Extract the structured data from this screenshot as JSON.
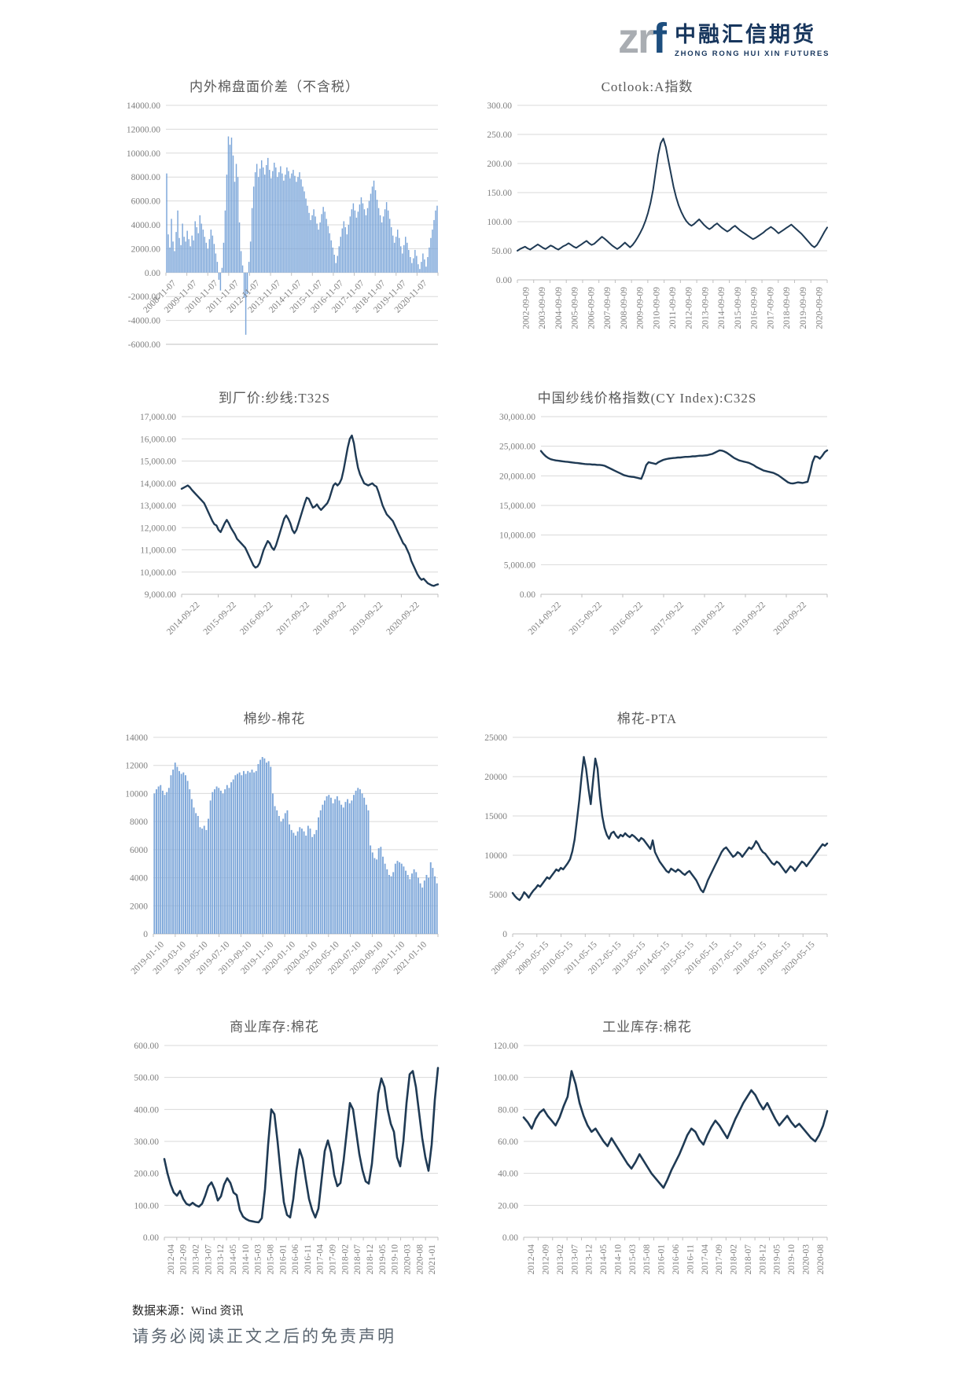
{
  "logo": {
    "wordmark_gray": "zr",
    "wordmark_blue": "f",
    "company_cn": "中融汇信期货",
    "company_en": "ZHONG RONG HUI XIN FUTURES"
  },
  "footer": {
    "source": "数据来源：Wind 资讯",
    "disclaimer": "请务必阅读正文之后的免责声明"
  },
  "colors": {
    "bar": "#7ca6d9",
    "line": "#1f3a54",
    "grid": "#d9d9d9",
    "axis": "#bfbfbf",
    "tick_text": "#7f7f7f",
    "title_text": "#595959"
  },
  "chart_data": [
    {
      "id": "c1",
      "type": "bar",
      "title": "内外棉盘面价差（不含税）",
      "ylim": [
        -6000,
        14000
      ],
      "ystep": 2000,
      "yfmt": {
        "dec": 2,
        "comma": false
      },
      "xrot": "diag",
      "xlabels_at_zero": true,
      "x_labels": [
        "2008-11-07",
        "2009-11-07",
        "2010-11-07",
        "2011-11-07",
        "2012-11-07",
        "2013-11-07",
        "2014-11-07",
        "2015-11-07",
        "2016-11-07",
        "2017-11-07",
        "2018-11-07",
        "2019-11-07",
        "2020-11-07"
      ],
      "values": [
        8300,
        3200,
        2100,
        4500,
        2600,
        1800,
        3400,
        5200,
        2900,
        2300,
        4100,
        3000,
        2600,
        3500,
        2800,
        2200,
        3100,
        2700,
        4300,
        3800,
        3300,
        4800,
        4100,
        3600,
        3000,
        2500,
        2000,
        2800,
        3600,
        3100,
        2400,
        1600,
        900,
        -600,
        -1500,
        400,
        2500,
        5200,
        8200,
        11400,
        10700,
        11300,
        9800,
        7600,
        9100,
        8000,
        4200,
        1800,
        600,
        -2100,
        -5200,
        -1800,
        900,
        2600,
        5400,
        7200,
        8400,
        9100,
        8000,
        8700,
        9400,
        8800,
        8200,
        9000,
        9600,
        8600,
        7900,
        8500,
        9200,
        8800,
        8000,
        8400,
        8900,
        8300,
        7700,
        8200,
        8800,
        8500,
        7900,
        8300,
        8600,
        8100,
        7600,
        8000,
        8400,
        7800,
        7200,
        6800,
        6200,
        5600,
        5000,
        4400,
        4800,
        5300,
        4700,
        4100,
        3600,
        4200,
        4900,
        5500,
        5100,
        4500,
        3900,
        3300,
        2700,
        2100,
        1500,
        800,
        1400,
        2200,
        3000,
        3700,
        4300,
        3800,
        3200,
        4000,
        4700,
        5300,
        5800,
        5200,
        4600,
        5100,
        5700,
        6300,
        5800,
        5300,
        4800,
        5400,
        6000,
        6600,
        7200,
        7700,
        6900,
        6100,
        5400,
        4800,
        4200,
        4700,
        5300,
        5900,
        5200,
        4500,
        3800,
        3100,
        2500,
        3000,
        3600,
        2900,
        2200,
        1600,
        2300,
        3000,
        2500,
        1900,
        1300,
        800,
        1200,
        1900,
        1400,
        700,
        300,
        900,
        1600,
        1100,
        500,
        1300,
        2100,
        2900,
        3600,
        4400,
        5200,
        5600
      ]
    },
    {
      "id": "c2",
      "type": "line",
      "title": "Cotlook:A指数",
      "ylim": [
        0,
        300
      ],
      "ystep": 50,
      "yfmt": {
        "dec": 2,
        "comma": false
      },
      "xrot": "vert",
      "x_labels": [
        "2002-09-09",
        "2003-09-09",
        "2004-09-09",
        "2005-09-09",
        "2006-09-09",
        "2007-09-09",
        "2008-09-09",
        "2009-09-09",
        "2010-09-09",
        "2011-09-09",
        "2012-09-09",
        "2013-09-09",
        "2014-09-09",
        "2015-09-09",
        "2016-09-09",
        "2017-09-09",
        "2018-09-09",
        "2019-09-09",
        "2020-09-09"
      ],
      "values": [
        50,
        53,
        55,
        57,
        54,
        52,
        55,
        58,
        61,
        58,
        55,
        53,
        56,
        59,
        57,
        54,
        52,
        55,
        58,
        60,
        63,
        60,
        57,
        55,
        58,
        61,
        64,
        67,
        63,
        60,
        62,
        66,
        70,
        74,
        71,
        67,
        63,
        59,
        56,
        53,
        56,
        60,
        64,
        60,
        56,
        60,
        66,
        73,
        81,
        90,
        101,
        115,
        132,
        155,
        185,
        215,
        235,
        243,
        228,
        205,
        182,
        160,
        142,
        128,
        117,
        108,
        101,
        96,
        93,
        96,
        100,
        104,
        99,
        94,
        90,
        87,
        90,
        94,
        97,
        93,
        89,
        86,
        83,
        86,
        90,
        93,
        89,
        85,
        82,
        79,
        76,
        73,
        70,
        72,
        75,
        78,
        81,
        85,
        88,
        91,
        88,
        84,
        80,
        83,
        86,
        89,
        92,
        95,
        91,
        87,
        83,
        79,
        74,
        69,
        64,
        59,
        56,
        60,
        67,
        75,
        83,
        90
      ]
    },
    {
      "id": "c3",
      "type": "line",
      "title": "到厂价:纱线:T32S",
      "ylim": [
        9000,
        17000
      ],
      "ystep": 1000,
      "yfmt": {
        "dec": 2,
        "comma": true
      },
      "xrot": "diag",
      "x_labels": [
        "2014-09-22",
        "2015-09-22",
        "2016-09-22",
        "2017-09-22",
        "2018-09-22",
        "2019-09-22",
        "2020-09-22"
      ],
      "values": [
        13750,
        13800,
        13850,
        13900,
        13820,
        13700,
        13600,
        13500,
        13400,
        13300,
        13200,
        13100,
        12900,
        12700,
        12500,
        12300,
        12150,
        12100,
        11900,
        11800,
        12000,
        12200,
        12350,
        12200,
        12000,
        11850,
        11700,
        11500,
        11400,
        11300,
        11200,
        11100,
        10900,
        10700,
        10500,
        10300,
        10200,
        10250,
        10400,
        10700,
        11000,
        11200,
        11400,
        11300,
        11100,
        11000,
        11200,
        11500,
        11800,
        12100,
        12400,
        12550,
        12400,
        12200,
        11900,
        11750,
        11900,
        12200,
        12500,
        12800,
        13100,
        13350,
        13300,
        13100,
        12900,
        12950,
        13050,
        12900,
        12800,
        12900,
        13000,
        13100,
        13300,
        13600,
        13900,
        14000,
        13900,
        14000,
        14200,
        14600,
        15100,
        15600,
        16000,
        16150,
        15800,
        15200,
        14700,
        14400,
        14200,
        14000,
        13950,
        13900,
        13950,
        14000,
        13900,
        13850,
        13600,
        13300,
        13000,
        12800,
        12600,
        12500,
        12400,
        12300,
        12100,
        11900,
        11700,
        11500,
        11300,
        11200,
        11000,
        10800,
        10500,
        10300,
        10100,
        9900,
        9750,
        9650,
        9700,
        9600,
        9500,
        9450,
        9400,
        9380,
        9420,
        9450
      ]
    },
    {
      "id": "c4",
      "type": "line",
      "title": "中国纱线价格指数(CY Index):C32S",
      "ylim": [
        0,
        30000
      ],
      "ystep": 5000,
      "yfmt": {
        "dec": 2,
        "comma": true
      },
      "xrot": "diag",
      "x_labels": [
        "2014-09-22",
        "2015-09-22",
        "2016-09-22",
        "2017-09-22",
        "2018-09-22",
        "2019-09-22",
        "2020-09-22"
      ],
      "values": [
        24200,
        23700,
        23300,
        23000,
        22800,
        22700,
        22600,
        22550,
        22500,
        22450,
        22400,
        22350,
        22300,
        22250,
        22200,
        22150,
        22100,
        22050,
        22000,
        21950,
        21950,
        21900,
        21900,
        21850,
        21850,
        21800,
        21700,
        21500,
        21300,
        21100,
        20900,
        20700,
        20500,
        20300,
        20100,
        20000,
        19900,
        19850,
        19800,
        19700,
        19600,
        19500,
        20500,
        21800,
        22300,
        22200,
        22100,
        22000,
        22300,
        22500,
        22700,
        22800,
        22900,
        22950,
        23000,
        23050,
        23100,
        23100,
        23150,
        23200,
        23200,
        23250,
        23300,
        23300,
        23350,
        23400,
        23400,
        23450,
        23500,
        23600,
        23700,
        23900,
        24100,
        24300,
        24250,
        24100,
        23900,
        23600,
        23300,
        23000,
        22800,
        22600,
        22500,
        22400,
        22300,
        22200,
        22000,
        21800,
        21500,
        21300,
        21100,
        20900,
        20800,
        20700,
        20600,
        20500,
        20300,
        20100,
        19800,
        19500,
        19200,
        18900,
        18750,
        18700,
        18800,
        18900,
        18850,
        18800,
        18900,
        19000,
        20500,
        22300,
        23300,
        23200,
        22900,
        23400,
        24000,
        24300
      ]
    },
    {
      "id": "c5",
      "type": "bar",
      "title": "棉纱-棉花",
      "ylim": [
        0,
        14000
      ],
      "ystep": 2000,
      "yfmt": {
        "dec": 0,
        "comma": false
      },
      "xrot": "diag",
      "x_labels": [
        "2019-01-10",
        "2019-03-10",
        "2019-05-10",
        "2019-07-10",
        "2019-09-10",
        "2019-11-10",
        "2020-01-10",
        "2020-03-10",
        "2020-05-10",
        "2020-07-10",
        "2020-09-10",
        "2020-11-10",
        "2021-01-10"
      ],
      "values": [
        10000,
        10300,
        10500,
        10600,
        10200,
        9900,
        10100,
        10400,
        11300,
        11700,
        12200,
        11900,
        11600,
        11400,
        11500,
        11300,
        10900,
        10300,
        9600,
        9000,
        8600,
        8400,
        7600,
        7500,
        7700,
        7400,
        8200,
        9500,
        10100,
        10300,
        10500,
        10400,
        10200,
        10000,
        10300,
        10600,
        10400,
        10800,
        11000,
        11300,
        11400,
        11500,
        11300,
        11600,
        11400,
        11600,
        11500,
        11700,
        11500,
        11600,
        12100,
        12400,
        12600,
        12500,
        12200,
        12300,
        11900,
        10000,
        9100,
        8800,
        8400,
        8000,
        8200,
        8600,
        8800,
        7800,
        7400,
        7200,
        7000,
        7300,
        7600,
        7500,
        7300,
        7000,
        7700,
        7500,
        6900,
        7100,
        7400,
        8300,
        8800,
        9200,
        9500,
        9800,
        9900,
        9700,
        9300,
        9600,
        9800,
        9500,
        9200,
        9000,
        9400,
        9600,
        9300,
        9500,
        9900,
        10200,
        10400,
        10300,
        10000,
        9700,
        9200,
        8800,
        6300,
        5800,
        5400,
        5300,
        6100,
        6200,
        5500,
        5000,
        4600,
        4200,
        4100,
        4400,
        5000,
        5200,
        5100,
        5000,
        4800,
        4500,
        4200,
        3900,
        4300,
        4600,
        4400,
        4000,
        3600,
        3300,
        3800,
        4200,
        4000,
        5100,
        4700,
        4100,
        3600
      ]
    },
    {
      "id": "c6",
      "type": "line",
      "title": "棉花-PTA",
      "ylim": [
        0,
        25000
      ],
      "ystep": 5000,
      "yfmt": {
        "dec": 0,
        "comma": false
      },
      "xrot": "diag",
      "x_labels": [
        "2008-05-15",
        "2009-05-15",
        "2010-05-15",
        "2011-05-15",
        "2012-05-15",
        "2013-05-15",
        "2014-05-15",
        "2015-05-15",
        "2016-05-15",
        "2017-05-15",
        "2018-05-15",
        "2019-05-15",
        "2020-05-15"
      ],
      "values": [
        5200,
        4800,
        4500,
        4300,
        4700,
        5300,
        5000,
        4600,
        5100,
        5500,
        5800,
        6200,
        6000,
        6400,
        6800,
        7200,
        7000,
        7400,
        7800,
        8200,
        8000,
        8400,
        8200,
        8600,
        9000,
        9500,
        10500,
        12000,
        14500,
        17000,
        20000,
        22500,
        21000,
        18500,
        16500,
        19500,
        22300,
        21000,
        17500,
        15000,
        13500,
        12600,
        12100,
        12800,
        13000,
        12500,
        12200,
        12600,
        12400,
        12800,
        12500,
        12300,
        12600,
        12400,
        12100,
        11800,
        12200,
        12000,
        11600,
        11200,
        10800,
        11900,
        10400,
        9800,
        9200,
        8800,
        8400,
        8000,
        7800,
        8300,
        8100,
        7900,
        8200,
        8000,
        7700,
        7500,
        7800,
        8000,
        7600,
        7200,
        6800,
        6200,
        5600,
        5300,
        6000,
        6800,
        7400,
        8000,
        8600,
        9200,
        9800,
        10400,
        10800,
        11000,
        10600,
        10200,
        9800,
        10000,
        10400,
        10200,
        9800,
        10200,
        10600,
        11000,
        10800,
        11200,
        11800,
        11400,
        10800,
        10400,
        10200,
        9800,
        9400,
        9000,
        8800,
        9200,
        9000,
        8600,
        8200,
        7800,
        8200,
        8600,
        8400,
        8000,
        8400,
        8800,
        9200,
        9000,
        8600,
        9000,
        9400,
        9800,
        10200,
        10600,
        11000,
        11400,
        11200,
        11500
      ]
    },
    {
      "id": "c7",
      "type": "line",
      "title": "商业库存:棉花",
      "ylim": [
        0,
        600
      ],
      "ystep": 100,
      "yfmt": {
        "dec": 2,
        "comma": false
      },
      "xrot": "vert",
      "x_labels": [
        "2012-04",
        "2012-09",
        "2013-02",
        "2013-07",
        "2013-12",
        "2014-05",
        "2014-10",
        "2015-03",
        "2015-08",
        "2016-01",
        "2016-06",
        "2016-11",
        "2017-04",
        "2017-09",
        "2018-02",
        "2018-07",
        "2018-12",
        "2019-05",
        "2019-10",
        "2020-03",
        "2020-08",
        "2021-01"
      ],
      "values": [
        245,
        200,
        165,
        140,
        130,
        145,
        120,
        105,
        100,
        108,
        100,
        96,
        105,
        130,
        160,
        172,
        150,
        115,
        128,
        165,
        185,
        170,
        140,
        132,
        85,
        65,
        57,
        52,
        50,
        48,
        47,
        60,
        150,
        290,
        400,
        385,
        300,
        200,
        110,
        70,
        62,
        120,
        210,
        275,
        245,
        180,
        120,
        85,
        62,
        90,
        180,
        270,
        303,
        265,
        195,
        160,
        170,
        240,
        330,
        420,
        400,
        330,
        260,
        210,
        175,
        168,
        230,
        340,
        450,
        497,
        470,
        400,
        355,
        330,
        250,
        222,
        300,
        420,
        510,
        520,
        470,
        390,
        310,
        250,
        208,
        290,
        430,
        530
      ]
    },
    {
      "id": "c8",
      "type": "line",
      "title": "工业库存:棉花",
      "ylim": [
        0,
        120
      ],
      "ystep": 20,
      "yfmt": {
        "dec": 2,
        "comma": false
      },
      "xrot": "vert",
      "x_labels": [
        "2012-04",
        "2012-09",
        "2013-02",
        "2013-07",
        "2013-12",
        "2014-05",
        "2014-10",
        "2015-03",
        "2015-08",
        "2016-01",
        "2016-06",
        "2016-11",
        "2017-04",
        "2017-09",
        "2018-02",
        "2018-07",
        "2018-12",
        "2019-05",
        "2019-10",
        "2020-03",
        "2020-08"
      ],
      "values": [
        75,
        72,
        68,
        74,
        78,
        80,
        76,
        73,
        70,
        75,
        82,
        88,
        104,
        96,
        84,
        76,
        70,
        66,
        68,
        64,
        60,
        57,
        62,
        58,
        54,
        50,
        46,
        43,
        47,
        52,
        48,
        44,
        40,
        37,
        34,
        31,
        36,
        42,
        47,
        52,
        58,
        64,
        68,
        66,
        61,
        58,
        64,
        69,
        73,
        70,
        66,
        62,
        68,
        74,
        79,
        84,
        88,
        92,
        89,
        84,
        80,
        84,
        79,
        74,
        70,
        73,
        76,
        72,
        69,
        71,
        68,
        65,
        62,
        60,
        64,
        70,
        79
      ]
    }
  ]
}
